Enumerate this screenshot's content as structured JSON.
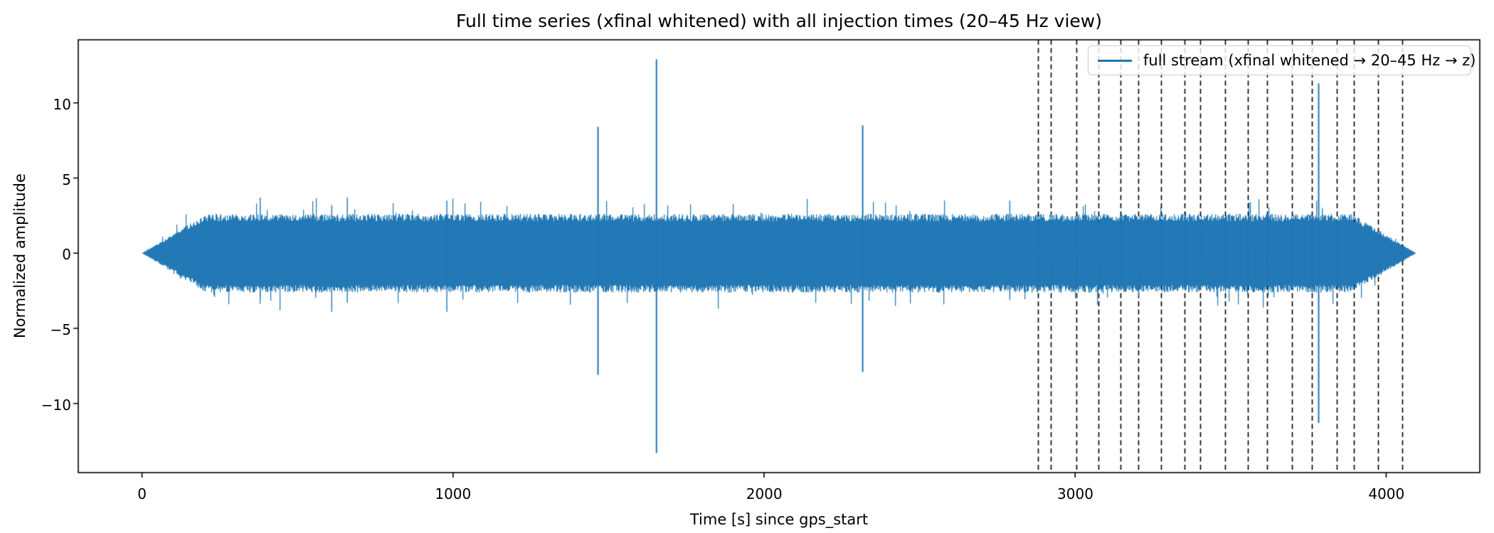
{
  "figure": {
    "title": "Full time series (xfinal whitened) with all injection times (20–45 Hz view)"
  },
  "chart_data": {
    "type": "line",
    "title": "Full time series (xfinal whitened) with all injection times (20–45 Hz view)",
    "xlabel": "Time [s] since gps_start",
    "ylabel": "Normalized amplitude",
    "xlim": [
      -205,
      4301
    ],
    "ylim": [
      -14.6,
      14.2
    ],
    "x_ticks": [
      0,
      1000,
      2000,
      3000,
      4000
    ],
    "y_ticks": [
      -10,
      -5,
      0,
      5,
      10
    ],
    "grid": false,
    "background": "#ffffff",
    "legend": {
      "position": "upper right",
      "entries": [
        {
          "label": "full stream (xfinal whitened → 20–45 Hz → z)",
          "color": "#1f77b4"
        }
      ]
    },
    "series": [
      {
        "name": "full stream (xfinal whitened → 20–45 Hz → z)",
        "type": "noise_band",
        "color": "#1f77b4",
        "t_start": 0,
        "t_end": 4096,
        "typical_amplitude": 2.5,
        "peak_noise_amplitude": 3.8,
        "taper_in_s": 205,
        "taper_out_s": 205
      }
    ],
    "spikes": [
      {
        "t": 1466,
        "max": 8.4,
        "min": -8.1
      },
      {
        "t": 1654,
        "max": 12.9,
        "min": -13.3
      },
      {
        "t": 2317,
        "max": 8.5,
        "min": -7.9
      },
      {
        "t": 3783,
        "max": 11.3,
        "min": -11.3
      }
    ],
    "minor_spikes": [
      {
        "t": 380,
        "max": 3.7,
        "min": -3.0
      },
      {
        "t": 610,
        "max": 3.2,
        "min": -3.9
      },
      {
        "t": 660,
        "max": 3.7,
        "min": -3.3
      },
      {
        "t": 980,
        "max": 3.5,
        "min": -3.9
      },
      {
        "t": 2790,
        "max": 3.5,
        "min": -3.1
      }
    ],
    "injection_times_s": [
      2880,
      2921,
      3004,
      3075,
      3146,
      3203,
      3277,
      3352,
      3402,
      3483,
      3556,
      3618,
      3698,
      3762,
      3842,
      3897,
      3975,
      4051
    ],
    "injection_line_style": {
      "color": "#000000",
      "dash": [
        7,
        4.5
      ],
      "width": 1.6
    }
  },
  "axis_tick_labels": {
    "x": [
      "0",
      "1000",
      "2000",
      "3000",
      "4000"
    ],
    "y": [
      "10",
      "5",
      "0",
      "−5",
      "−10"
    ]
  }
}
